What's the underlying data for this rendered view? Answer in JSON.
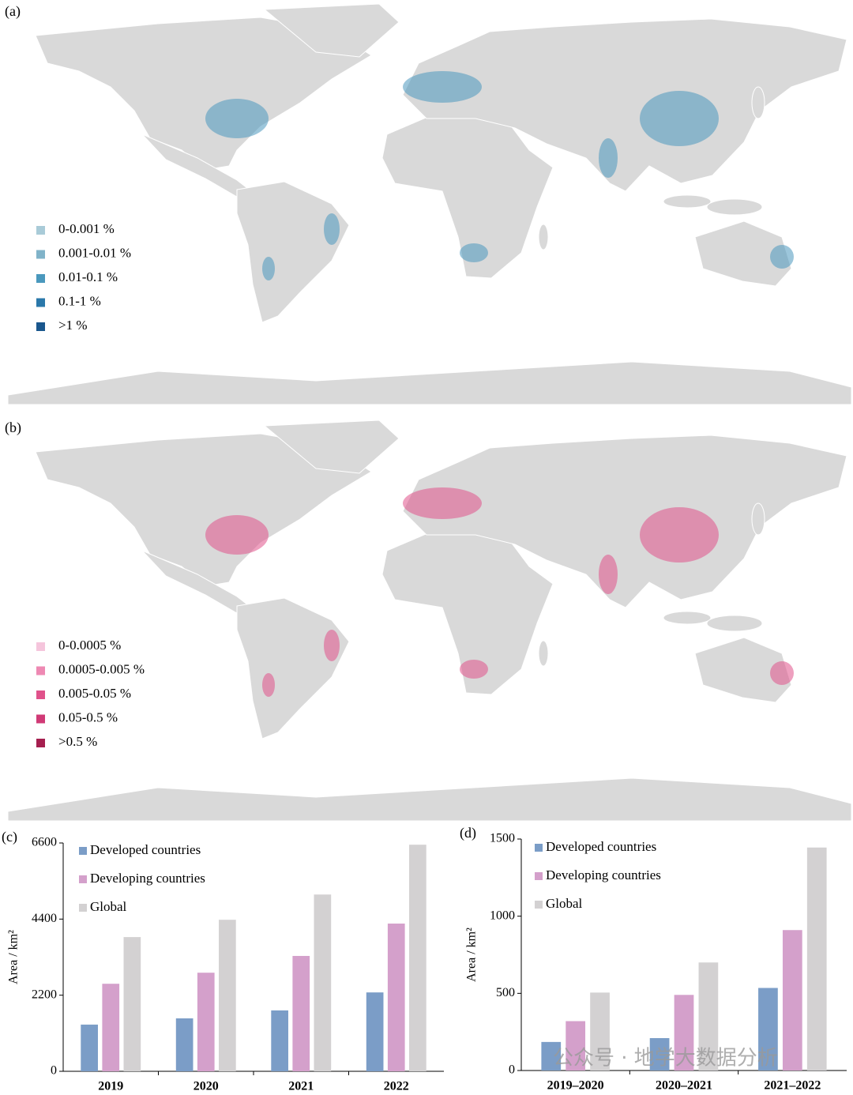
{
  "maps": [
    {
      "panel_label": "(a)",
      "legend": [
        {
          "label": "0-0.001 %",
          "color": "#a9cbd8"
        },
        {
          "label": "0.001-0.01 %",
          "color": "#80b3c9"
        },
        {
          "label": "0.01-0.1 %",
          "color": "#4a98bd"
        },
        {
          "label": "0.1-1 %",
          "color": "#2a78aa"
        },
        {
          "label": ">1 %",
          "color": "#1a578d"
        }
      ]
    },
    {
      "panel_label": "(b)",
      "legend": [
        {
          "label": "0-0.0005 %",
          "color": "#f5c5dc"
        },
        {
          "label": "0.0005-0.005 %",
          "color": "#ee89b3"
        },
        {
          "label": "0.005-0.05 %",
          "color": "#e0528b"
        },
        {
          "label": "0.05-0.5 %",
          "color": "#d03a76"
        },
        {
          "label": ">0.5 %",
          "color": "#a51f4f"
        }
      ]
    }
  ],
  "chart_data": [
    {
      "type": "bar",
      "panel_label": "(c)",
      "y_label": "Area / km²",
      "categories": [
        "2019",
        "2020",
        "2021",
        "2022"
      ],
      "series": [
        {
          "name": "Developed countries",
          "color": "#7b9dc7",
          "values": [
            1350,
            1530,
            1760,
            2280
          ]
        },
        {
          "name": "Developing countries",
          "color": "#d4a0cb",
          "values": [
            2530,
            2850,
            3335,
            4270
          ]
        },
        {
          "name": "Global",
          "color": "#d3d1d2",
          "values": [
            3880,
            4380,
            5110,
            6550
          ]
        }
      ],
      "ylim": [
        0,
        6600
      ],
      "yticks": [
        0,
        2200,
        4400,
        6600
      ]
    },
    {
      "type": "bar",
      "panel_label": "(d)",
      "y_label": "Area / km²",
      "categories": [
        "2019–2020",
        "2020–2021",
        "2021–2022"
      ],
      "series": [
        {
          "name": "Developed countries",
          "color": "#7b9dc7",
          "values": [
            185,
            210,
            535
          ]
        },
        {
          "name": "Developing countries",
          "color": "#d4a0cb",
          "values": [
            320,
            490,
            910
          ]
        },
        {
          "name": "Global",
          "color": "#d3d1d2",
          "values": [
            505,
            700,
            1445
          ]
        }
      ],
      "ylim": [
        0,
        1500
      ],
      "yticks": [
        0,
        500,
        1000,
        1500
      ]
    }
  ],
  "watermark": "公众号 · 地学大数据分析"
}
